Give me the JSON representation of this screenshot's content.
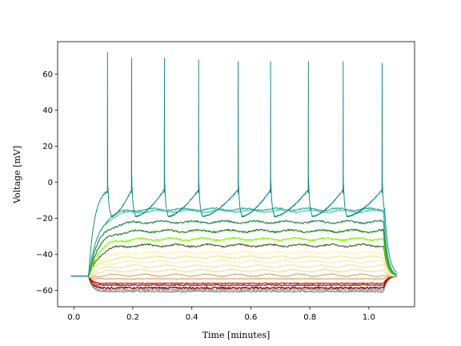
{
  "chart_data": {
    "type": "line",
    "title": "",
    "xlabel": "Time [minutes]",
    "ylabel": "Voltage [mV]",
    "xlim": [
      -0.055,
      1.155
    ],
    "ylim": [
      -69,
      78
    ],
    "xticks": [
      0.0,
      0.2,
      0.4,
      0.6,
      0.8,
      1.0
    ],
    "xtick_labels": [
      "0.0",
      "0.2",
      "0.4",
      "0.6",
      "0.8",
      "1.0"
    ],
    "yticks": [
      -60,
      -40,
      -20,
      0,
      20,
      40,
      60
    ],
    "ytick_labels": [
      "−60",
      "−40",
      "−20",
      "0",
      "20",
      "40",
      "60"
    ],
    "grid": false,
    "legend": "none",
    "stimulus_window": [
      0.05,
      1.05
    ],
    "baseline_mv": -52,
    "series": [
      {
        "color": "#888888",
        "steady_mv": -60.5
      },
      {
        "color": "#9a9a9a",
        "steady_mv": -59.5
      },
      {
        "color": "#7a0000",
        "steady_mv": -58.5
      },
      {
        "color": "#b22222",
        "steady_mv": -57
      },
      {
        "color": "#cc2200",
        "steady_mv": -56
      },
      {
        "color": "#e2a86a",
        "steady_mv": -53.5
      },
      {
        "color": "#d9b07a",
        "steady_mv": -51.5
      },
      {
        "color": "#f0e0a8",
        "steady_mv": -49
      },
      {
        "color": "#f5e7b4",
        "steady_mv": -46.5
      },
      {
        "color": "#f7eec4",
        "steady_mv": -44
      },
      {
        "color": "#f4e8a0",
        "steady_mv": -41.5
      },
      {
        "color": "#fff3b0",
        "steady_mv": -39
      },
      {
        "color": "#556b2f",
        "steady_mv": -35
      },
      {
        "color": "#7cfc00",
        "steady_mv": -31.5
      },
      {
        "color": "#228b22",
        "steady_mv": -27
      },
      {
        "color": "#2e8b57",
        "steady_mv": -22
      },
      {
        "color": "#66cdaa",
        "steady_mv": -16
      },
      {
        "color": "#3cb4a4",
        "steady_mv": -15
      },
      {
        "color": "#008080",
        "spiking": true,
        "spike_times": [
          0.114,
          0.196,
          0.307,
          0.423,
          0.557,
          0.667,
          0.795,
          0.913,
          1.045
        ],
        "spike_peaks_mv": [
          72,
          69,
          69,
          68,
          67,
          67,
          67,
          67,
          66
        ]
      }
    ]
  }
}
